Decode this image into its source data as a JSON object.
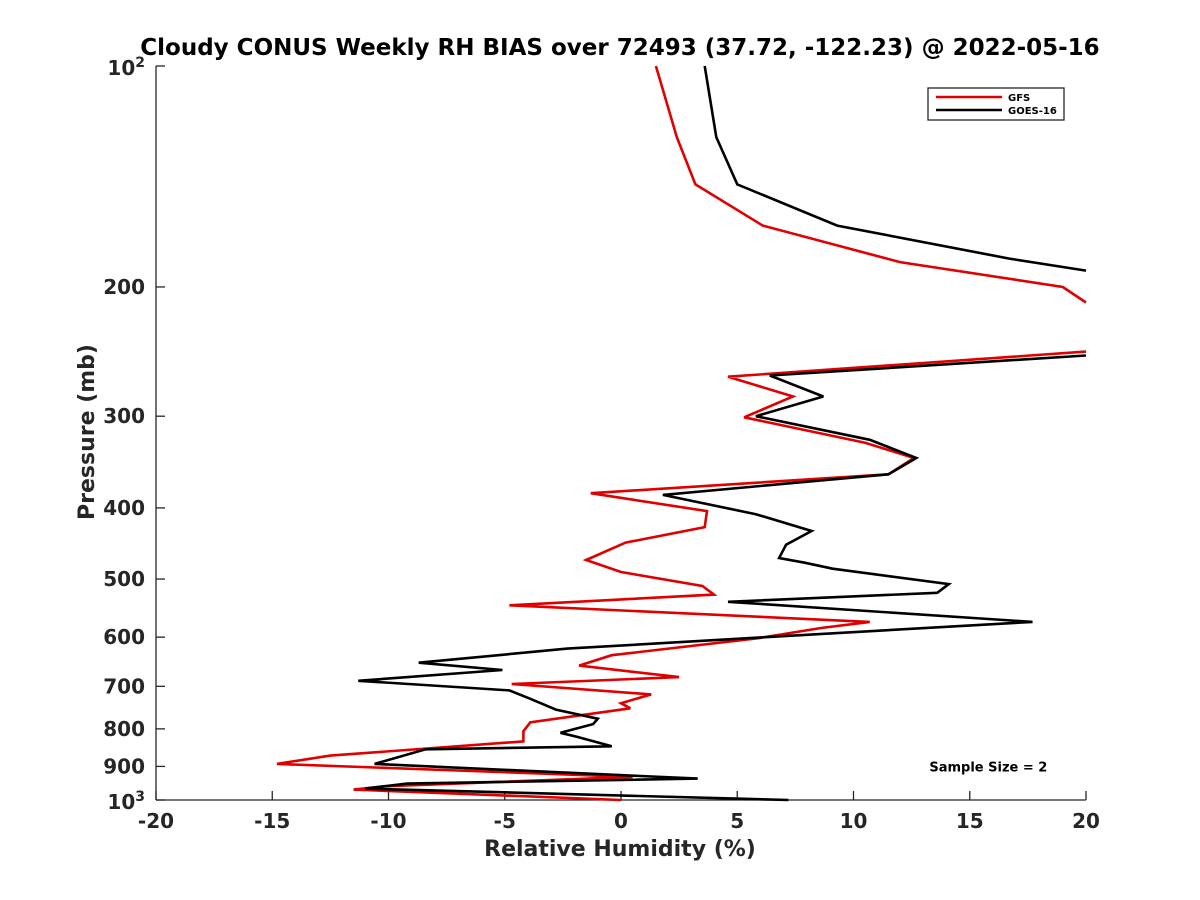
{
  "chart_data": {
    "type": "line",
    "title": "Cloudy CONUS Weekly RH BIAS over 72493 (37.72, -122.23) @ 2022-05-16",
    "xlabel": "Relative Humidity (%)",
    "ylabel": "Pressure (mb)",
    "xlim": [
      -20,
      20
    ],
    "ylim": [
      100,
      1000
    ],
    "yscale": "log",
    "y_reversed": true,
    "grid": false,
    "legend_position": "top-right",
    "x_ticks": [
      {
        "value": -20,
        "label": "-20"
      },
      {
        "value": -15,
        "label": "-15"
      },
      {
        "value": -10,
        "label": "-10"
      },
      {
        "value": -5,
        "label": "-5"
      },
      {
        "value": 0,
        "label": "0"
      },
      {
        "value": 5,
        "label": "5"
      },
      {
        "value": 10,
        "label": "10"
      },
      {
        "value": 15,
        "label": "15"
      },
      {
        "value": 20,
        "label": "20"
      }
    ],
    "y_ticks": [
      {
        "value": 100,
        "base": "10",
        "exp": "2"
      },
      {
        "value": 200,
        "label": "200"
      },
      {
        "value": 300,
        "label": "300"
      },
      {
        "value": 400,
        "label": "400"
      },
      {
        "value": 500,
        "label": "500"
      },
      {
        "value": 600,
        "label": "600"
      },
      {
        "value": 700,
        "label": "700"
      },
      {
        "value": 800,
        "label": "800"
      },
      {
        "value": 900,
        "label": "900"
      },
      {
        "value": 1000,
        "base": "10",
        "exp": "3"
      }
    ],
    "series": [
      {
        "name": "GFS",
        "color": "#e00000",
        "segments": [
          [
            {
              "x": 1.5,
              "y": 100
            },
            {
              "x": 2.4,
              "y": 125
            },
            {
              "x": 3.2,
              "y": 145
            },
            {
              "x": 6.1,
              "y": 165
            },
            {
              "x": 12.0,
              "y": 185
            },
            {
              "x": 19.0,
              "y": 200
            },
            {
              "x": 20.0,
              "y": 210
            }
          ],
          [
            {
              "x": 20.0,
              "y": 245
            },
            {
              "x": 4.6,
              "y": 265
            },
            {
              "x": 7.4,
              "y": 282
            },
            {
              "x": 5.3,
              "y": 301
            },
            {
              "x": 10.5,
              "y": 326
            },
            {
              "x": 12.6,
              "y": 342
            },
            {
              "x": 11.5,
              "y": 360
            },
            {
              "x": -1.3,
              "y": 382
            },
            {
              "x": 3.7,
              "y": 404
            },
            {
              "x": 3.6,
              "y": 425
            },
            {
              "x": 0.2,
              "y": 446
            },
            {
              "x": -1.5,
              "y": 471
            },
            {
              "x": 0.0,
              "y": 489
            },
            {
              "x": 3.5,
              "y": 511
            },
            {
              "x": 4.0,
              "y": 525
            },
            {
              "x": -4.8,
              "y": 543
            },
            {
              "x": 10.7,
              "y": 572
            },
            {
              "x": 8.6,
              "y": 583
            },
            {
              "x": 5.9,
              "y": 602
            },
            {
              "x": -0.4,
              "y": 635
            },
            {
              "x": -1.8,
              "y": 656
            },
            {
              "x": 2.5,
              "y": 680
            },
            {
              "x": -4.7,
              "y": 695
            },
            {
              "x": 1.3,
              "y": 718
            },
            {
              "x": 0.0,
              "y": 738
            },
            {
              "x": 0.4,
              "y": 750
            },
            {
              "x": -3.9,
              "y": 784
            },
            {
              "x": -4.2,
              "y": 806
            },
            {
              "x": -4.2,
              "y": 832
            },
            {
              "x": -12.5,
              "y": 870
            },
            {
              "x": -14.8,
              "y": 893
            },
            {
              "x": 0.5,
              "y": 930
            },
            {
              "x": -10.2,
              "y": 958
            },
            {
              "x": -11.5,
              "y": 968
            },
            {
              "x": 0.0,
              "y": 1000
            }
          ]
        ]
      },
      {
        "name": "GOES-16",
        "color": "#000000",
        "segments": [
          [
            {
              "x": 3.6,
              "y": 100
            },
            {
              "x": 4.1,
              "y": 125
            },
            {
              "x": 5.0,
              "y": 145
            },
            {
              "x": 9.3,
              "y": 165
            },
            {
              "x": 16.7,
              "y": 183
            },
            {
              "x": 20.0,
              "y": 190
            }
          ],
          [
            {
              "x": 20.0,
              "y": 248
            },
            {
              "x": 6.4,
              "y": 264
            },
            {
              "x": 8.7,
              "y": 282
            },
            {
              "x": 5.8,
              "y": 300
            },
            {
              "x": 10.7,
              "y": 323
            },
            {
              "x": 12.7,
              "y": 342
            },
            {
              "x": 11.5,
              "y": 360
            },
            {
              "x": 1.8,
              "y": 384
            },
            {
              "x": 5.8,
              "y": 408
            },
            {
              "x": 8.2,
              "y": 430
            },
            {
              "x": 7.1,
              "y": 449
            },
            {
              "x": 6.8,
              "y": 468
            },
            {
              "x": 7.9,
              "y": 475
            },
            {
              "x": 9.1,
              "y": 484
            },
            {
              "x": 14.1,
              "y": 508
            },
            {
              "x": 13.6,
              "y": 522
            },
            {
              "x": 4.6,
              "y": 537
            },
            {
              "x": 17.7,
              "y": 572
            },
            {
              "x": 6.2,
              "y": 600
            },
            {
              "x": -2.3,
              "y": 622
            },
            {
              "x": -8.7,
              "y": 650
            },
            {
              "x": -5.1,
              "y": 665
            },
            {
              "x": -11.3,
              "y": 688
            },
            {
              "x": -4.8,
              "y": 709
            },
            {
              "x": -3.9,
              "y": 728
            },
            {
              "x": -2.8,
              "y": 753
            },
            {
              "x": -1.0,
              "y": 775
            },
            {
              "x": -1.2,
              "y": 788
            },
            {
              "x": -2.6,
              "y": 810
            },
            {
              "x": -1.9,
              "y": 820
            },
            {
              "x": -0.4,
              "y": 845
            },
            {
              "x": -8.4,
              "y": 853
            },
            {
              "x": -10.6,
              "y": 893
            },
            {
              "x": 3.3,
              "y": 935
            },
            {
              "x": -9.2,
              "y": 950
            },
            {
              "x": -11.0,
              "y": 965
            },
            {
              "x": 7.2,
              "y": 1000
            }
          ]
        ]
      }
    ],
    "annotations": [
      {
        "text": "Sample Size = 2",
        "x": 15.8,
        "y": 900
      }
    ]
  }
}
